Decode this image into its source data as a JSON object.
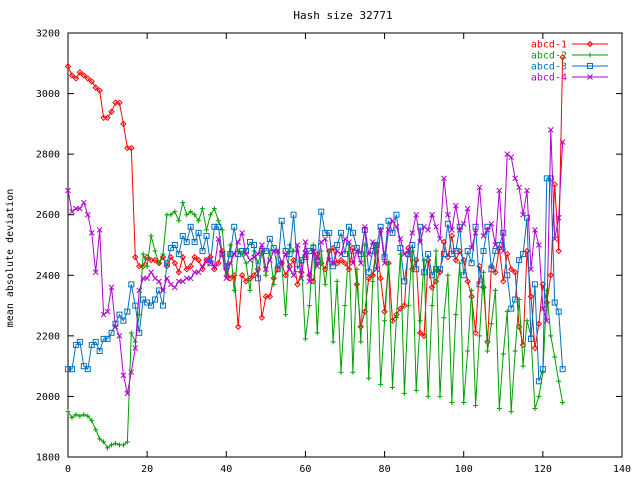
{
  "chart_data": {
    "type": "line",
    "title": "Hash size 32771",
    "xlabel": "",
    "ylabel": "mean absolute deviation",
    "xlim": [
      0,
      140
    ],
    "ylim": [
      1800,
      3200
    ],
    "xticks": [
      0,
      20,
      40,
      60,
      80,
      100,
      120,
      140
    ],
    "yticks": [
      1800,
      2000,
      2200,
      2400,
      2600,
      2800,
      3000,
      3200
    ],
    "grid": false,
    "legend_position": "top-right",
    "series": [
      {
        "name": "abcd-1",
        "color": "#ff0000",
        "marker": "diamond",
        "values": [
          3090,
          3060,
          3050,
          3070,
          3060,
          3050,
          3040,
          3020,
          3010,
          2920,
          2920,
          2940,
          2970,
          2970,
          2900,
          2820,
          2820,
          2460,
          2430,
          2430,
          2460,
          2450,
          2450,
          2440,
          2460,
          2430,
          2460,
          2440,
          2410,
          2460,
          2420,
          2430,
          2460,
          2450,
          2420,
          2450,
          2460,
          2420,
          2440,
          2480,
          2420,
          2390,
          2400,
          2230,
          2400,
          2380,
          2390,
          2400,
          2420,
          2260,
          2330,
          2330,
          2390,
          2420,
          2440,
          2400,
          2430,
          2450,
          2370,
          2410,
          2480,
          2400,
          2380,
          2470,
          2440,
          2420,
          2480,
          2490,
          2440,
          2450,
          2440,
          2420,
          2490,
          2370,
          2230,
          2280,
          2390,
          2400,
          2500,
          2390,
          2280,
          2440,
          2250,
          2270,
          2290,
          2300,
          2490,
          2420,
          2450,
          2210,
          2200,
          2450,
          2360,
          2380,
          2410,
          2510,
          2460,
          2530,
          2450,
          2480,
          2450,
          2380,
          2330,
          2210,
          2430,
          2360,
          2180,
          2430,
          2410,
          2490,
          2380,
          2470,
          2420,
          2410,
          2230,
          2170,
          2480,
          2330,
          2160,
          2240,
          2370,
          2310,
          2400,
          2700,
          2480,
          3120
        ]
      },
      {
        "name": "abcd-2",
        "color": "#00a000",
        "marker": "plus",
        "values": [
          1950,
          1930,
          1940,
          1935,
          1940,
          1935,
          1920,
          1890,
          1860,
          1850,
          1830,
          1840,
          1845,
          1840,
          1840,
          1850,
          2210,
          2180,
          2270,
          2470,
          2430,
          2530,
          2480,
          2440,
          2470,
          2600,
          2600,
          2610,
          2580,
          2640,
          2600,
          2610,
          2600,
          2580,
          2620,
          2550,
          2600,
          2620,
          2580,
          2550,
          2400,
          2500,
          2350,
          2480,
          2470,
          2440,
          2350,
          2480,
          2440,
          2480,
          2400,
          2480,
          2370,
          2480,
          2440,
          2270,
          2500,
          2480,
          2480,
          2440,
          2190,
          2300,
          2500,
          2210,
          2480,
          2370,
          2480,
          2180,
          2380,
          2080,
          2300,
          2500,
          2080,
          2420,
          2180,
          2500,
          2060,
          2380,
          2500,
          2040,
          2250,
          2440,
          2030,
          2260,
          2470,
          2010,
          2300,
          2480,
          2020,
          2250,
          2450,
          2000,
          2300,
          2480,
          2000,
          2260,
          2400,
          1980,
          2270,
          2440,
          1980,
          2150,
          2350,
          1970,
          2200,
          2410,
          2150,
          2240,
          2350,
          1960,
          2140,
          2280,
          1950,
          2150,
          2320,
          2100,
          2250,
          2200,
          1960,
          2000,
          2080,
          2350,
          2200,
          2130,
          2050,
          1980
        ]
      },
      {
        "name": "abcd-3",
        "color": "#0070c0",
        "marker": "square",
        "values": [
          2090,
          2090,
          2170,
          2180,
          2100,
          2090,
          2170,
          2180,
          2150,
          2190,
          2190,
          2210,
          2240,
          2270,
          2250,
          2280,
          2370,
          2300,
          2210,
          2320,
          2310,
          2300,
          2320,
          2350,
          2300,
          2440,
          2490,
          2500,
          2470,
          2530,
          2510,
          2560,
          2510,
          2540,
          2480,
          2530,
          2440,
          2560,
          2560,
          2470,
          2430,
          2470,
          2560,
          2470,
          2480,
          2480,
          2510,
          2500,
          2390,
          2480,
          2480,
          2520,
          2490,
          2420,
          2580,
          2480,
          2470,
          2600,
          2420,
          2450,
          2460,
          2480,
          2490,
          2450,
          2610,
          2540,
          2540,
          2430,
          2500,
          2540,
          2470,
          2560,
          2540,
          2490,
          2470,
          2550,
          2410,
          2480,
          2500,
          2560,
          2460,
          2580,
          2540,
          2600,
          2490,
          2380,
          2470,
          2500,
          2420,
          2560,
          2410,
          2470,
          2400,
          2420,
          2420,
          2470,
          2570,
          2470,
          2480,
          2560,
          2400,
          2480,
          2440,
          2560,
          2370,
          2480,
          2560,
          2420,
          2480,
          2500,
          2540,
          2400,
          2290,
          2320,
          2450,
          2470,
          2590,
          2190,
          2370,
          2050,
          2090,
          2720,
          2720,
          2310,
          2280,
          2090
        ]
      },
      {
        "name": "abcd-4",
        "color": "#b000d0",
        "marker": "x",
        "values": [
          2680,
          2610,
          2620,
          2620,
          2640,
          2600,
          2540,
          2410,
          2550,
          2270,
          2280,
          2360,
          2230,
          2200,
          2070,
          2010,
          2080,
          2160,
          2350,
          2390,
          2390,
          2410,
          2390,
          2380,
          2350,
          2390,
          2370,
          2360,
          2380,
          2380,
          2390,
          2390,
          2410,
          2410,
          2430,
          2450,
          2440,
          2430,
          2520,
          2470,
          2390,
          2440,
          2470,
          2510,
          2540,
          2470,
          2450,
          2460,
          2470,
          2500,
          2420,
          2450,
          2480,
          2480,
          2440,
          2470,
          2420,
          2400,
          2500,
          2390,
          2510,
          2380,
          2480,
          2430,
          2510,
          2520,
          2450,
          2440,
          2480,
          2470,
          2520,
          2510,
          2440,
          2480,
          2440,
          2560,
          2470,
          2510,
          2420,
          2550,
          2440,
          2550,
          2580,
          2560,
          2520,
          2470,
          2480,
          2540,
          2600,
          2510,
          2560,
          2550,
          2600,
          2560,
          2520,
          2720,
          2600,
          2550,
          2630,
          2550,
          2570,
          2620,
          2490,
          2540,
          2690,
          2530,
          2550,
          2570,
          2500,
          2680,
          2480,
          2800,
          2790,
          2720,
          2690,
          2600,
          2680,
          2420,
          2550,
          2500,
          2290,
          2250,
          2880,
          2520,
          2590,
          2840
        ]
      }
    ]
  }
}
